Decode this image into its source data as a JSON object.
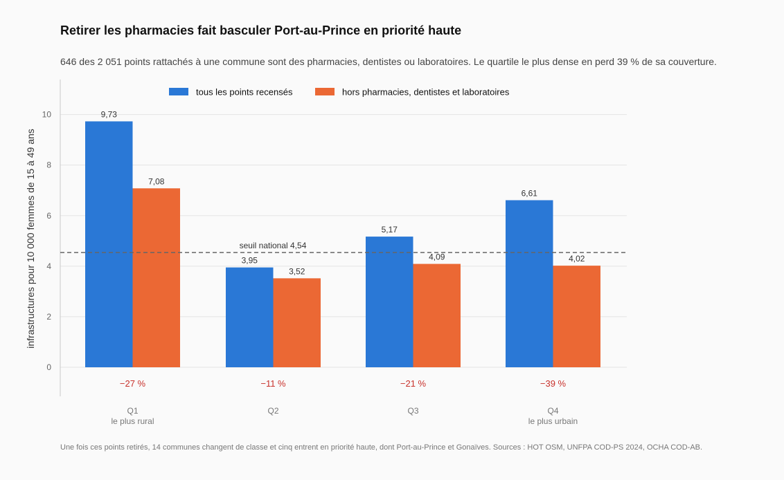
{
  "title": "Retirer les pharmacies fait basculer Port-au-Prince en priorité haute",
  "subtitle": "646 des 2 051 points rattachés à une commune sont des pharmacies, dentistes ou laboratoires. Le quartile le plus dense en perd 39 % de sa couverture.",
  "footnote": "Une fois ces points retirés, 14 communes changent de classe et cinq entrent en priorité haute, dont Port-au-Prince et Gonaïves. Sources : HOT OSM, UNFPA COD-PS 2024, OCHA COD-AB.",
  "chart_data": {
    "type": "bar",
    "categories": [
      "Q1",
      "Q2",
      "Q3",
      "Q4"
    ],
    "category_sublabels": [
      "le plus rural",
      "",
      "",
      "le plus urbain"
    ],
    "series": [
      {
        "name": "tous les points recensés",
        "color": "#2a78d6",
        "values": [
          9.73,
          3.95,
          5.17,
          6.61
        ],
        "labels": [
          "9,73",
          "3,95",
          "5,17",
          "6,61"
        ]
      },
      {
        "name": "hors pharmacies, dentistes et laboratoires",
        "color": "#eb6834",
        "values": [
          7.08,
          3.52,
          4.09,
          4.02
        ],
        "labels": [
          "7,08",
          "3,52",
          "4,09",
          "4,02"
        ]
      }
    ],
    "changes": [
      "−27 %",
      "−11 %",
      "−21 %",
      "−39 %"
    ],
    "change_color": "#c8312b",
    "threshold": {
      "value": 4.54,
      "label": "seuil national 4,54"
    },
    "ylabel": "infrastructures pour 10 000 femmes de 15 à 49 ans",
    "xlabel": "",
    "ylim": [
      0,
      10
    ],
    "yticks": [
      0,
      2,
      4,
      6,
      8,
      10
    ],
    "grid": true,
    "legend_position": "top-center"
  }
}
